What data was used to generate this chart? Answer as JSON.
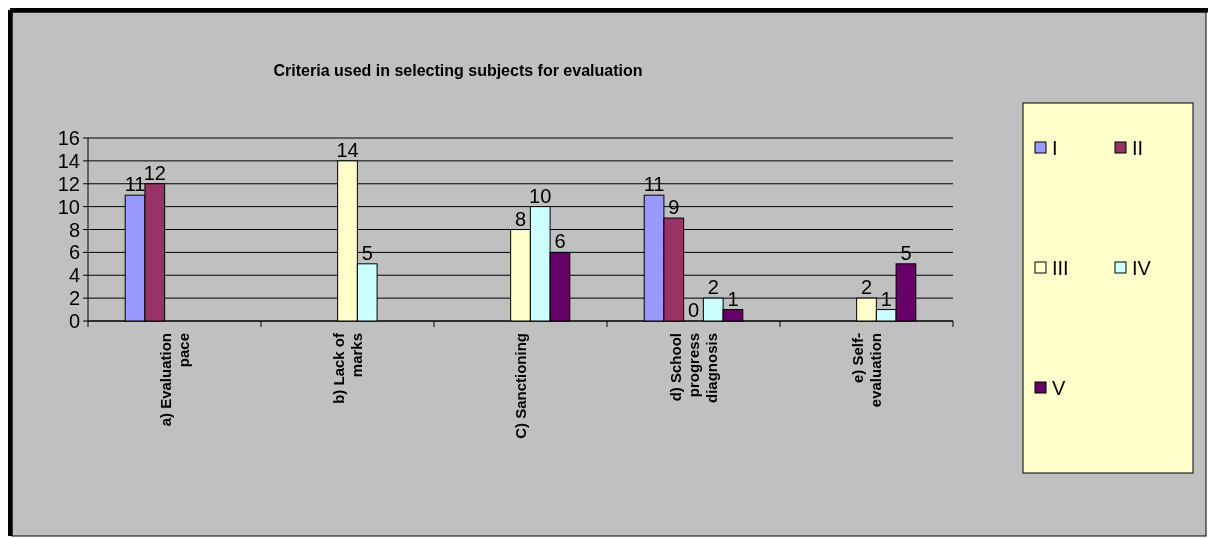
{
  "chart_data": {
    "type": "bar",
    "title": "Criteria used in selecting subjects for evaluation",
    "categories": [
      "a) Evaluation pace",
      "b) Lack of marks",
      "C) Sanctioning",
      "d) School progress diagnosis",
      "e) Self-evaluation"
    ],
    "series": [
      {
        "name": "I",
        "color": "#9999ff",
        "values": [
          11,
          null,
          null,
          11,
          null
        ]
      },
      {
        "name": "II",
        "color": "#993366",
        "values": [
          12,
          null,
          null,
          9,
          null
        ]
      },
      {
        "name": "III",
        "color": "#ffffcc",
        "values": [
          null,
          14,
          8,
          0,
          2
        ]
      },
      {
        "name": "IV",
        "color": "#ccffff",
        "values": [
          null,
          5,
          10,
          2,
          1
        ]
      },
      {
        "name": "V",
        "color": "#660066",
        "values": [
          null,
          null,
          6,
          1,
          5
        ]
      }
    ],
    "ylim": [
      0,
      16
    ],
    "yticks": [
      0,
      2,
      4,
      6,
      8,
      10,
      12,
      14,
      16
    ],
    "grid": "y",
    "legend": "right",
    "data_labels": true
  }
}
